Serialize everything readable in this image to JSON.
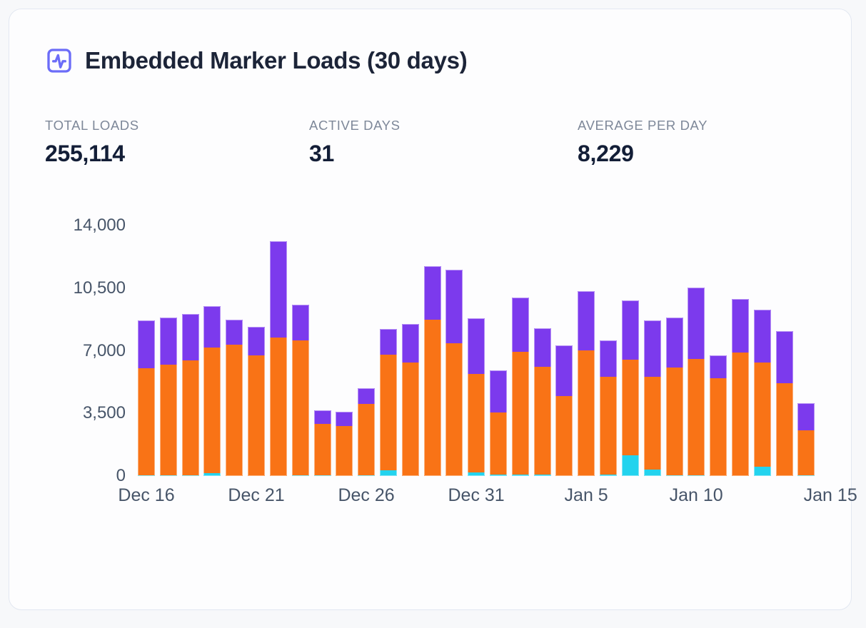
{
  "card": {
    "title": "Embedded Marker Loads (30 days)",
    "icon": "activity-square-icon"
  },
  "stats": [
    {
      "label": "TOTAL LOADS",
      "value": "255,114"
    },
    {
      "label": "ACTIVE DAYS",
      "value": "31"
    },
    {
      "label": "AVERAGE PER DAY",
      "value": "8,229"
    }
  ],
  "colors": {
    "accent_icon": "#6b6cf8",
    "bar_orange": "#f97316",
    "bar_purple": "#7c3aed",
    "bar_cyan": "#23d3ee",
    "axis_text": "#475569",
    "card_background": "#fdfdfe",
    "page_background": "#f7f8fa"
  },
  "chart_data": {
    "type": "bar",
    "stacked": true,
    "title": "Embedded Marker Loads (30 days)",
    "xlabel": "",
    "ylabel": "",
    "ylim": [
      0,
      14000
    ],
    "grid": false,
    "legend": false,
    "y_ticks": {
      "values": [
        0,
        3500,
        7000,
        10500,
        14000
      ],
      "labels": [
        "0",
        "3,500",
        "7,000",
        "10,500",
        "14,000"
      ]
    },
    "x_ticks": {
      "indices": [
        0,
        5,
        10,
        15,
        20,
        25,
        30
      ],
      "labels": [
        "Dec 16",
        "Dec 21",
        "Dec 26",
        "Dec 31",
        "Jan 5",
        "Jan 10",
        "Jan 15"
      ]
    },
    "categories": [
      "Dec 16",
      "Dec 17",
      "Dec 18",
      "Dec 19",
      "Dec 20",
      "Dec 21",
      "Dec 22",
      "Dec 23",
      "Dec 24",
      "Dec 25",
      "Dec 26",
      "Dec 27",
      "Dec 28",
      "Dec 29",
      "Dec 30",
      "Dec 31",
      "Jan 1",
      "Jan 2",
      "Jan 3",
      "Jan 4",
      "Jan 5",
      "Jan 6",
      "Jan 7",
      "Jan 8",
      "Jan 9",
      "Jan 10",
      "Jan 11",
      "Jan 12",
      "Jan 13",
      "Jan 14",
      "Jan 15"
    ],
    "series": [
      {
        "name": "cyan",
        "color": "#23d3ee",
        "values": [
          60,
          60,
          60,
          150,
          0,
          0,
          0,
          60,
          60,
          0,
          60,
          330,
          0,
          0,
          0,
          200,
          100,
          100,
          100,
          0,
          0,
          100,
          1150,
          350,
          60,
          60,
          0,
          0,
          530,
          0,
          60
        ]
      },
      {
        "name": "orange",
        "color": "#f97316",
        "values": [
          5950,
          6150,
          6400,
          7050,
          7330,
          6740,
          7750,
          7500,
          2850,
          2790,
          3970,
          6450,
          6360,
          8750,
          7420,
          5520,
          3460,
          6830,
          6020,
          4460,
          7020,
          5460,
          5370,
          5210,
          5990,
          6470,
          5450,
          6920,
          5830,
          5190,
          2510
        ]
      },
      {
        "name": "purple",
        "color": "#7c3aed",
        "values": [
          2700,
          2650,
          2600,
          2300,
          1420,
          1590,
          5390,
          2000,
          760,
          810,
          890,
          1440,
          2130,
          2970,
          4100,
          3090,
          2330,
          3050,
          2140,
          2830,
          3300,
          2000,
          3300,
          3130,
          2790,
          4000,
          1300,
          2970,
          2950,
          2900,
          1490
        ]
      }
    ]
  }
}
